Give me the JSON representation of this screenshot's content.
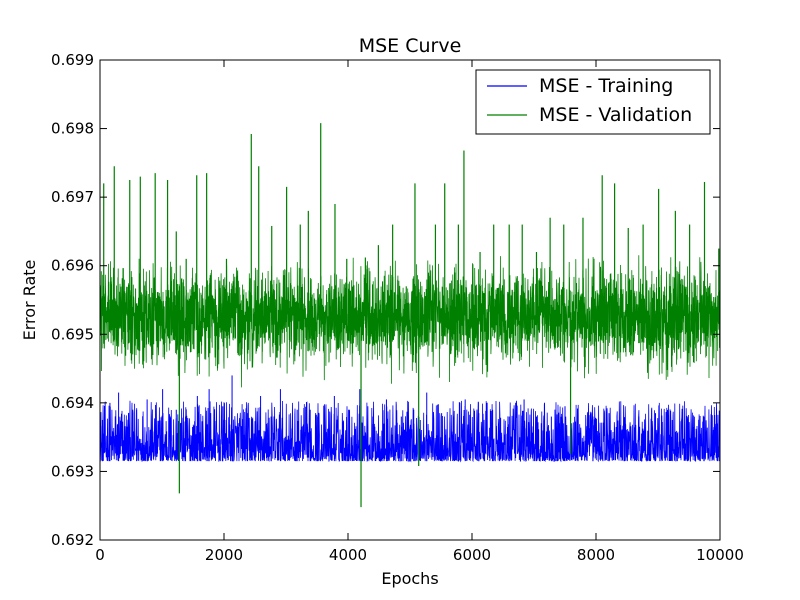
{
  "chart_data": {
    "type": "line",
    "title": "MSE Curve",
    "xlabel": "Epochs",
    "ylabel": "Error Rate",
    "xlim": [
      0,
      10000
    ],
    "ylim": [
      0.692,
      0.699
    ],
    "x_ticks": [
      0,
      2000,
      4000,
      6000,
      8000,
      10000
    ],
    "x_tick_labels": [
      "0",
      "2000",
      "4000",
      "6000",
      "8000",
      "10000"
    ],
    "y_ticks": [
      0.692,
      0.693,
      0.694,
      0.695,
      0.696,
      0.697,
      0.698,
      0.699
    ],
    "y_tick_labels": [
      "0.692",
      "0.693",
      "0.694",
      "0.695",
      "0.696",
      "0.697",
      "0.698",
      "0.699"
    ],
    "grid": false,
    "legend_position": "top-right",
    "series": [
      {
        "name": "MSE - Training",
        "color": "#0000ff",
        "floor": 0.69315,
        "typical_range": [
          0.69315,
          0.6937
        ],
        "x": [
          40,
          160,
          300,
          460,
          590,
          760,
          1010,
          1230,
          1380,
          1570,
          1760,
          1980,
          2130,
          2380,
          2590,
          2760,
          2910,
          3180,
          3390,
          3510,
          3780,
          4010,
          4190,
          4390,
          4620,
          4860,
          5060,
          5270,
          5510,
          5710,
          5890,
          6110,
          6330,
          6600,
          6840,
          7040,
          7280,
          7500,
          7710,
          7950,
          8210,
          8460,
          8690,
          8960,
          9230,
          9480,
          9740,
          9960
        ],
        "y": [
          0.69375,
          0.694,
          0.69415,
          0.69385,
          0.6939,
          0.69405,
          0.6942,
          0.6939,
          0.6938,
          0.6941,
          0.6942,
          0.69395,
          0.6944,
          0.69385,
          0.6941,
          0.6938,
          0.6942,
          0.6939,
          0.6939,
          0.6938,
          0.6941,
          0.6939,
          0.6942,
          0.6938,
          0.69405,
          0.6938,
          0.6939,
          0.69415,
          0.69385,
          0.6938,
          0.69405,
          0.69385,
          0.6939,
          0.6938,
          0.69405,
          0.6938,
          0.6938,
          0.69395,
          0.69385,
          0.6938,
          0.69385,
          0.69375,
          0.6938,
          0.69385,
          0.69375,
          0.6938,
          0.6938,
          0.6937
        ]
      },
      {
        "name": "MSE - Validation",
        "color": "#008000",
        "center": 0.6952,
        "typical_range": [
          0.6943,
          0.6962
        ],
        "x": [
          60,
          230,
          480,
          650,
          890,
          1090,
          1230,
          1280,
          1390,
          1560,
          1720,
          2040,
          2230,
          2440,
          2560,
          2770,
          3010,
          3230,
          3360,
          3560,
          3790,
          3980,
          4210,
          4280,
          4490,
          4720,
          5080,
          5140,
          5410,
          5560,
          5780,
          5870,
          6130,
          6350,
          6600,
          6810,
          7040,
          7260,
          7480,
          7590,
          7790,
          8100,
          8300,
          8520,
          8760,
          9010,
          9280,
          9510,
          9750,
          9980
        ],
        "y": [
          0.6972,
          0.69745,
          0.69725,
          0.6973,
          0.69735,
          0.69725,
          0.6965,
          0.69268,
          0.6961,
          0.69732,
          0.69735,
          0.6961,
          0.6947,
          0.69792,
          0.69745,
          0.69658,
          0.69715,
          0.6966,
          0.6968,
          0.69808,
          0.6969,
          0.6961,
          0.69248,
          0.69612,
          0.6963,
          0.6966,
          0.6972,
          0.69308,
          0.6966,
          0.6972,
          0.6966,
          0.69768,
          0.6962,
          0.6966,
          0.6966,
          0.6966,
          0.6962,
          0.6967,
          0.6966,
          0.69325,
          0.6967,
          0.69732,
          0.6972,
          0.69655,
          0.6966,
          0.69712,
          0.6968,
          0.6966,
          0.69722,
          0.69625
        ]
      }
    ]
  }
}
